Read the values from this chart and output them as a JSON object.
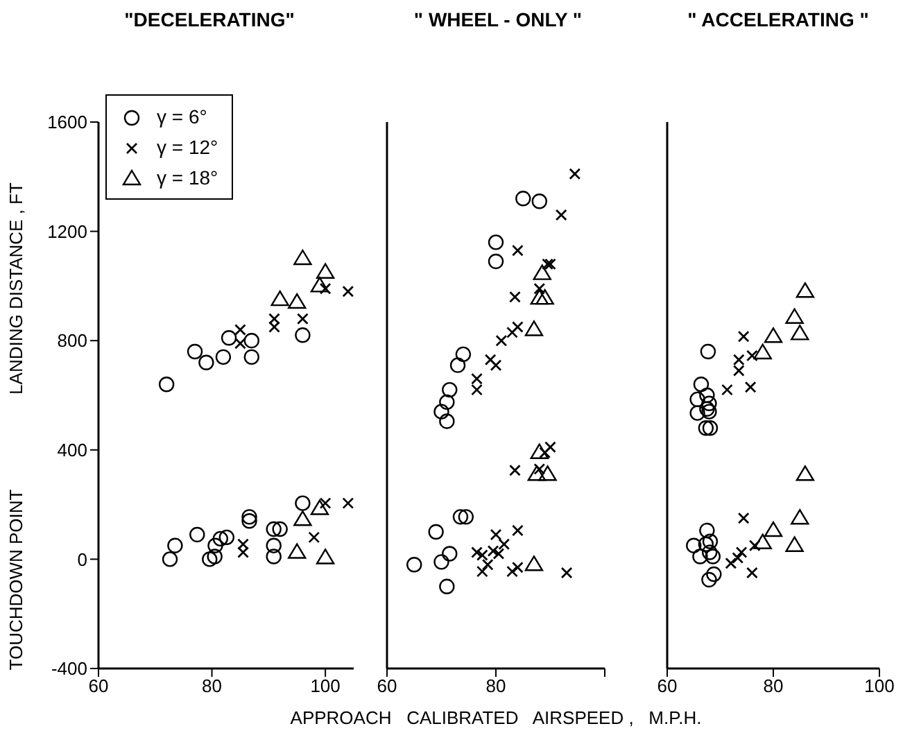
{
  "chart_data": [
    {
      "type": "scatter",
      "title": "\"DECELERATING\"",
      "ylabel": "LANDING DISTANCE , FT",
      "annotations": [
        "TOUCHDOWN POINT"
      ],
      "legend": "top left",
      "xlim": [
        60,
        105
      ],
      "xticks": [
        60,
        80,
        100
      ],
      "ylim": [
        -400,
        1600
      ],
      "yticks": [
        -400,
        0,
        400,
        800,
        1200,
        1600
      ],
      "series": [
        {
          "name": "γ = 6°",
          "color": "#000000",
          "marker": "circle",
          "x": [
            72,
            77,
            79,
            82,
            83,
            87,
            87,
            96,
            72.6,
            73.5,
            77.4,
            79.6,
            80.5,
            80.6,
            81.5,
            82.6,
            86.6,
            86.6,
            90.9,
            92,
            90.9,
            90.9,
            96
          ],
          "values": [
            640,
            760,
            720,
            740,
            810,
            800,
            740,
            820,
            0,
            50,
            90,
            0,
            10,
            50,
            75,
            80,
            155,
            140,
            110,
            110,
            50,
            10,
            205
          ]
        },
        {
          "name": "γ = 12°",
          "color": "#000000",
          "marker": "cross",
          "x": [
            85,
            85,
            91,
            91,
            96,
            100,
            104,
            85.5,
            85.5,
            98,
            100,
            104
          ],
          "values": [
            840,
            790,
            880,
            850,
            880,
            990,
            980,
            55,
            25,
            80,
            205,
            205
          ]
        },
        {
          "name": "γ = 18°",
          "color": "#000000",
          "marker": "triangle",
          "x": [
            96,
            100,
            99,
            92,
            95,
            96,
            99,
            95,
            100
          ],
          "values": [
            1100,
            1050,
            1000,
            950,
            940,
            145,
            185,
            25,
            5
          ]
        }
      ]
    },
    {
      "type": "scatter",
      "title": "\" WHEEL - ONLY \"",
      "xlabel": "APPROACH   CALIBRATED   AIRSPEED ,   M.P.H.",
      "tick_labels": "x",
      "xlim": [
        60,
        100
      ],
      "xticks": [
        60,
        80,
        {
          "value": 100,
          "label": null
        }
      ],
      "ylim": [
        -400,
        1600
      ],
      "yticks": [
        -400,
        0,
        400,
        800,
        1200,
        1600
      ],
      "series": [
        {
          "color": "#000000",
          "marker": "circle",
          "x": [
            85,
            88,
            80,
            80,
            74,
            73,
            71.5,
            71,
            70,
            71,
            65,
            69,
            70,
            71.5,
            71,
            73.5,
            74.5
          ],
          "values": [
            1320,
            1310,
            1160,
            1090,
            750,
            710,
            620,
            575,
            540,
            505,
            -20,
            100,
            -10,
            20,
            -100,
            155,
            155
          ]
        },
        {
          "color": "#000000",
          "marker": "cross",
          "x": [
            94.5,
            92,
            84,
            89.5,
            90,
            88,
            83.5,
            84,
            83,
            81,
            79,
            80,
            76.5,
            76.5,
            76.5,
            77.5,
            77.5,
            78.5,
            79.5,
            80,
            81.5,
            80.5,
            83,
            84,
            84,
            83.5,
            90,
            89,
            88,
            93
          ],
          "values": [
            1410,
            1260,
            1130,
            1080,
            1080,
            990,
            960,
            850,
            830,
            800,
            730,
            710,
            660,
            620,
            25,
            -45,
            15,
            -20,
            30,
            90,
            55,
            20,
            -45,
            -30,
            105,
            325,
            410,
            390,
            330,
            -50
          ]
        },
        {
          "color": "#000000",
          "marker": "triangle",
          "x": [
            88.5,
            88,
            89,
            87,
            88,
            87.5,
            89.5,
            87
          ],
          "values": [
            1045,
            955,
            955,
            840,
            390,
            310,
            310,
            -20
          ]
        }
      ]
    },
    {
      "type": "scatter",
      "title": "\" ACCELERATING \"",
      "tick_labels": "x",
      "xlim": [
        60,
        100
      ],
      "xticks": [
        60,
        80,
        100
      ],
      "ylim": [
        -400,
        1600
      ],
      "yticks": [
        -400,
        0,
        400,
        800,
        1200,
        1600
      ],
      "series": [
        {
          "color": "#000000",
          "marker": "circle",
          "x": [
            67.7,
            66.4,
            65.7,
            65.7,
            67.5,
            67.9,
            67.9,
            67.5,
            67.3,
            68.1,
            67.5,
            65,
            66.2,
            67.3,
            68.1,
            68.6,
            68.8,
            67.9,
            68
          ],
          "values": [
            760,
            640,
            585,
            535,
            600,
            570,
            540,
            550,
            480,
            480,
            105,
            50,
            10,
            55,
            65,
            10,
            -55,
            -75,
            25
          ]
        },
        {
          "color": "#000000",
          "marker": "cross",
          "x": [
            74.4,
            73.5,
            76,
            73.5,
            71.3,
            75.7,
            74.4,
            72,
            73.3,
            74,
            76.5,
            76
          ],
          "values": [
            815,
            730,
            745,
            690,
            620,
            630,
            150,
            -15,
            5,
            25,
            50,
            -50
          ]
        },
        {
          "color": "#000000",
          "marker": "triangle",
          "x": [
            86,
            84,
            85,
            80,
            78,
            86,
            85,
            80,
            78,
            84
          ],
          "values": [
            980,
            885,
            825,
            815,
            755,
            310,
            150,
            105,
            60,
            50
          ]
        }
      ]
    }
  ]
}
